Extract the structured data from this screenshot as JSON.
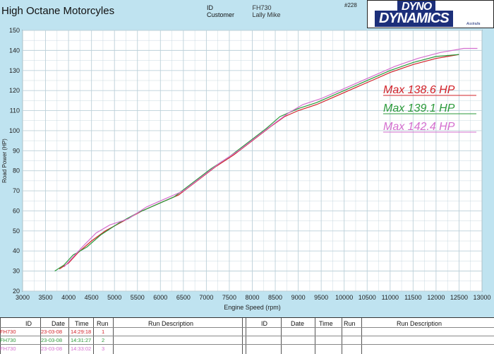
{
  "header": {
    "shop_name": "High Octane Motorcyles",
    "id_label": "ID",
    "id_value": "FH730",
    "customer_label": "Customer",
    "customer_value": "Lally Mike",
    "sheet_number": "#228",
    "logo_line1": "DYNO",
    "logo_line2": "DYNAMICS",
    "logo_sub": "Australia"
  },
  "colors": {
    "run1": "#d2232a",
    "run2": "#2b9a3a",
    "run3": "#d56fcf",
    "grid": "#bcd0d9",
    "plot_bg": "#ffffff"
  },
  "annotations": [
    {
      "text": "Max 138.6 HP",
      "color": "#d2232a"
    },
    {
      "text": "Max 139.1 HP",
      "color": "#2b9a3a"
    },
    {
      "text": "Max 142.4 HP",
      "color": "#d56fcf"
    }
  ],
  "chart_data": {
    "type": "line",
    "xlabel": "Engine Speed (rpm)",
    "ylabel": "Road Power (HP)",
    "xlim": [
      3000,
      13000
    ],
    "ylim": [
      20,
      150
    ],
    "xticks": [
      3000,
      3500,
      4000,
      4500,
      5000,
      5500,
      6000,
      6500,
      7000,
      7500,
      8000,
      8500,
      9000,
      9500,
      10000,
      10500,
      11000,
      11500,
      12000,
      12500,
      13000
    ],
    "yticks": [
      20,
      30,
      40,
      50,
      60,
      70,
      80,
      90,
      100,
      110,
      120,
      130,
      140,
      150
    ],
    "grid": true,
    "series": [
      {
        "name": "Run 1",
        "color": "#d2232a",
        "points": [
          [
            3800,
            31
          ],
          [
            4000,
            34
          ],
          [
            4200,
            39
          ],
          [
            4500,
            45
          ],
          [
            4800,
            50
          ],
          [
            5200,
            55
          ],
          [
            5600,
            60
          ],
          [
            6000,
            64
          ],
          [
            6400,
            68
          ],
          [
            6800,
            75
          ],
          [
            7200,
            82
          ],
          [
            7600,
            88
          ],
          [
            8000,
            95
          ],
          [
            8400,
            102
          ],
          [
            8700,
            107
          ],
          [
            9000,
            110
          ],
          [
            9400,
            113
          ],
          [
            9800,
            117
          ],
          [
            10200,
            121
          ],
          [
            10600,
            125
          ],
          [
            11000,
            129
          ],
          [
            11500,
            133
          ],
          [
            12000,
            136
          ],
          [
            12500,
            138
          ]
        ]
      },
      {
        "name": "Run 2",
        "color": "#2b9a3a",
        "points": [
          [
            3700,
            30
          ],
          [
            3900,
            33
          ],
          [
            4100,
            38
          ],
          [
            4400,
            42
          ],
          [
            4700,
            48
          ],
          [
            5100,
            54
          ],
          [
            5500,
            59
          ],
          [
            5900,
            63
          ],
          [
            6300,
            67
          ],
          [
            6700,
            74
          ],
          [
            7100,
            81
          ],
          [
            7500,
            87
          ],
          [
            7900,
            94
          ],
          [
            8300,
            101
          ],
          [
            8600,
            107
          ],
          [
            9000,
            111
          ],
          [
            9400,
            114
          ],
          [
            9800,
            118
          ],
          [
            10200,
            122
          ],
          [
            10600,
            126
          ],
          [
            11000,
            130
          ],
          [
            11500,
            134
          ],
          [
            12000,
            137
          ],
          [
            12500,
            138
          ]
        ]
      },
      {
        "name": "Run 3",
        "color": "#d56fcf",
        "points": [
          [
            3900,
            32
          ],
          [
            4100,
            37
          ],
          [
            4300,
            42
          ],
          [
            4600,
            49
          ],
          [
            4900,
            53
          ],
          [
            5300,
            56
          ],
          [
            5700,
            62
          ],
          [
            6100,
            66
          ],
          [
            6500,
            70
          ],
          [
            6900,
            77
          ],
          [
            7300,
            84
          ],
          [
            7700,
            90
          ],
          [
            8100,
            97
          ],
          [
            8500,
            104
          ],
          [
            8800,
            109
          ],
          [
            9100,
            113
          ],
          [
            9500,
            116
          ],
          [
            9900,
            120
          ],
          [
            10300,
            124
          ],
          [
            10700,
            128
          ],
          [
            11100,
            132
          ],
          [
            11600,
            136
          ],
          [
            12100,
            139
          ],
          [
            12600,
            141
          ],
          [
            12900,
            141
          ]
        ]
      }
    ]
  },
  "run_table": {
    "headers_left": [
      "ID",
      "Date",
      "Time",
      "Run",
      "Run Description"
    ],
    "headers_right": [
      "ID",
      "Date",
      "Time",
      "Run",
      "Run Description"
    ],
    "rows": [
      {
        "id": "FH730",
        "date": "23-03-08",
        "time": "14:29:18",
        "run": "1",
        "color": "#d2232a"
      },
      {
        "id": "FH730",
        "date": "23-03-08",
        "time": "14:31:27",
        "run": "2",
        "color": "#2b9a3a"
      },
      {
        "id": "FH730",
        "date": "23-03-08",
        "time": "14:33:02",
        "run": "3",
        "color": "#d56fcf"
      }
    ]
  }
}
